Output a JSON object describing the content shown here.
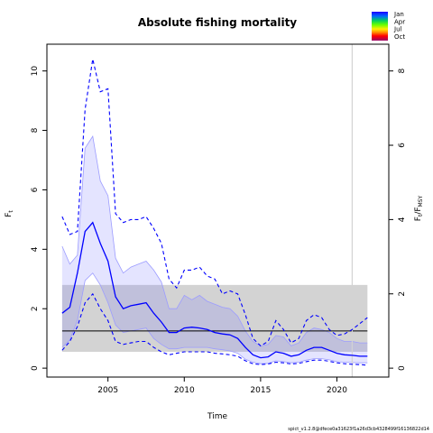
{
  "chart_data": {
    "type": "line",
    "title": "Absolute fishing mortality",
    "xlabel": "Time",
    "ylabel_left": "F",
    "ylabel_left_sub": "t",
    "ylabel_right_parts": [
      "F",
      "t",
      "/F",
      "MSY"
    ],
    "xlim": [
      2001.0,
      2023.4
    ],
    "ylim": [
      -0.3,
      10.9
    ],
    "xticks": [
      "2005",
      "2010",
      "2015",
      "2020"
    ],
    "yticks_left": [
      "0",
      "2",
      "4",
      "6",
      "8",
      "10"
    ],
    "yticks_right": [
      "0",
      "2",
      "4",
      "6",
      "8"
    ],
    "right_axis_scale_factor": 1.25,
    "reference_line_y": 1.25,
    "reference_band": [
      0.55,
      2.8
    ],
    "reference_band_x": [
      2002,
      2022
    ],
    "vertical_line_x": 2021.0,
    "x": [
      2002,
      2002.5,
      2003,
      2003.5,
      2004,
      2004.5,
      2005,
      2005.5,
      2006,
      2006.5,
      2007,
      2007.5,
      2008,
      2008.5,
      2009,
      2009.5,
      2010,
      2010.5,
      2011,
      2011.5,
      2012,
      2012.5,
      2013,
      2013.5,
      2014,
      2014.5,
      2015,
      2015.5,
      2016,
      2016.5,
      2017,
      2017.5,
      2018,
      2018.5,
      2019,
      2019.5,
      2020,
      2020.5,
      2021,
      2021.5,
      2022
    ],
    "series": [
      {
        "values": [
          1.85,
          2.05,
          3.2,
          4.6,
          4.9,
          4.2,
          3.6,
          2.4,
          2.0,
          2.1,
          2.15,
          2.2,
          1.85,
          1.55,
          1.2,
          1.2,
          1.35,
          1.38,
          1.35,
          1.3,
          1.2,
          1.15,
          1.12,
          1.0,
          0.7,
          0.45,
          0.35,
          0.38,
          0.55,
          0.5,
          0.4,
          0.45,
          0.6,
          0.7,
          0.7,
          0.6,
          0.5,
          0.45,
          0.43,
          0.4,
          0.4
        ]
      },
      {
        "values": [
          4.1,
          3.5,
          3.8,
          7.4,
          7.8,
          6.3,
          5.8,
          3.7,
          3.2,
          3.4,
          3.5,
          3.6,
          3.3,
          2.9,
          2.0,
          2.0,
          2.45,
          2.3,
          2.45,
          2.25,
          2.15,
          2.05,
          2.0,
          1.75,
          1.25,
          0.9,
          0.75,
          0.8,
          1.1,
          1.05,
          0.75,
          0.85,
          1.2,
          1.35,
          1.3,
          1.2,
          1.0,
          0.9,
          0.9,
          0.85,
          0.85
        ]
      },
      {
        "values": [
          0.7,
          0.95,
          1.6,
          2.95,
          3.2,
          2.8,
          2.2,
          1.45,
          1.2,
          1.25,
          1.3,
          1.35,
          1.0,
          0.8,
          0.65,
          0.65,
          0.7,
          0.7,
          0.7,
          0.7,
          0.65,
          0.62,
          0.58,
          0.5,
          0.3,
          0.2,
          0.15,
          0.16,
          0.25,
          0.22,
          0.18,
          0.2,
          0.27,
          0.32,
          0.32,
          0.28,
          0.22,
          0.2,
          0.19,
          0.18,
          0.18
        ]
      },
      {
        "values": [
          5.1,
          4.5,
          4.6,
          8.7,
          10.4,
          9.3,
          9.4,
          5.2,
          4.9,
          5.0,
          5.0,
          5.1,
          4.7,
          4.2,
          3.0,
          2.7,
          3.3,
          3.3,
          3.4,
          3.1,
          3.0,
          2.5,
          2.6,
          2.5,
          1.8,
          1.0,
          0.75,
          0.9,
          1.6,
          1.3,
          0.85,
          1.0,
          1.6,
          1.8,
          1.7,
          1.3,
          1.1,
          1.15,
          1.3,
          1.5,
          1.7
        ]
      },
      {
        "values": [
          0.6,
          0.9,
          1.4,
          2.2,
          2.5,
          2.0,
          1.6,
          0.9,
          0.8,
          0.85,
          0.9,
          0.9,
          0.7,
          0.55,
          0.45,
          0.5,
          0.55,
          0.55,
          0.55,
          0.55,
          0.5,
          0.48,
          0.45,
          0.4,
          0.25,
          0.15,
          0.12,
          0.14,
          0.2,
          0.18,
          0.14,
          0.16,
          0.22,
          0.27,
          0.27,
          0.23,
          0.18,
          0.15,
          0.13,
          0.12,
          0.1
        ]
      }
    ],
    "legend": {
      "labels": [
        "Jan",
        "Apr",
        "Jul",
        "Oct"
      ],
      "colors": [
        "#1a00ff",
        "#00cc66",
        "#ffcc00",
        "#990066"
      ]
    },
    "colors": {
      "line": "#0000ff",
      "band_fill": "rgba(120,120,255,0.2)",
      "band_edge": "#9c9cff",
      "ref_band": "#d3d3d3",
      "vline": "#d3d3d3"
    },
    "footer": "spict_v1.2.8@dfece0a31623f1a26d3cb4328499f16136822d14"
  }
}
